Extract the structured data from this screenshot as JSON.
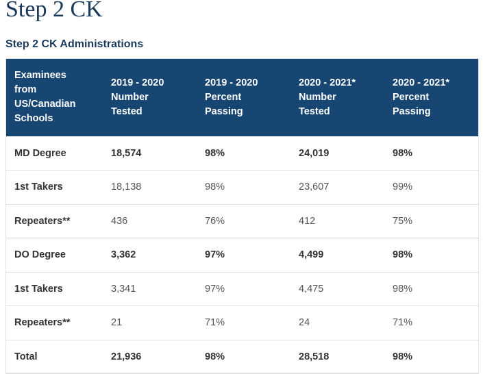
{
  "page": {
    "title": "Step 2 CK",
    "section_title": "Step 2 CK Administrations"
  },
  "table": {
    "headers": [
      [
        "Examinees",
        "from",
        "US/Canadian",
        "Schools"
      ],
      [
        "2019 - 2020",
        "Number",
        "Tested"
      ],
      [
        "2019 - 2020",
        "Percent",
        "Passing"
      ],
      [
        "2020 - 2021*",
        "Number",
        "Tested"
      ],
      [
        "2020 - 2021*",
        "Percent",
        "Passing"
      ]
    ],
    "rows": [
      {
        "cells": [
          "MD Degree",
          "18,574",
          "98%",
          "24,019",
          "98%"
        ],
        "bold": true
      },
      {
        "cells": [
          "1st Takers",
          "18,138",
          "98%",
          "23,607",
          "99%"
        ],
        "bold": false
      },
      {
        "cells": [
          "Repeaters**",
          "436",
          "76%",
          "412",
          "75%"
        ],
        "bold": false
      },
      {
        "cells": [
          "DO Degree",
          "3,362",
          "97%",
          "4,499",
          "98%"
        ],
        "bold": true
      },
      {
        "cells": [
          "1st Takers",
          "3,341",
          "97%",
          "4,475",
          "98%"
        ],
        "bold": false
      },
      {
        "cells": [
          "Repeaters**",
          "21",
          "71%",
          "24",
          "71%"
        ],
        "bold": false
      },
      {
        "cells": [
          "Total",
          "21,936",
          "98%",
          "28,518",
          "98%"
        ],
        "bold": true
      }
    ]
  },
  "colors": {
    "header_background": "#174673",
    "title": "#1b3a5c"
  }
}
